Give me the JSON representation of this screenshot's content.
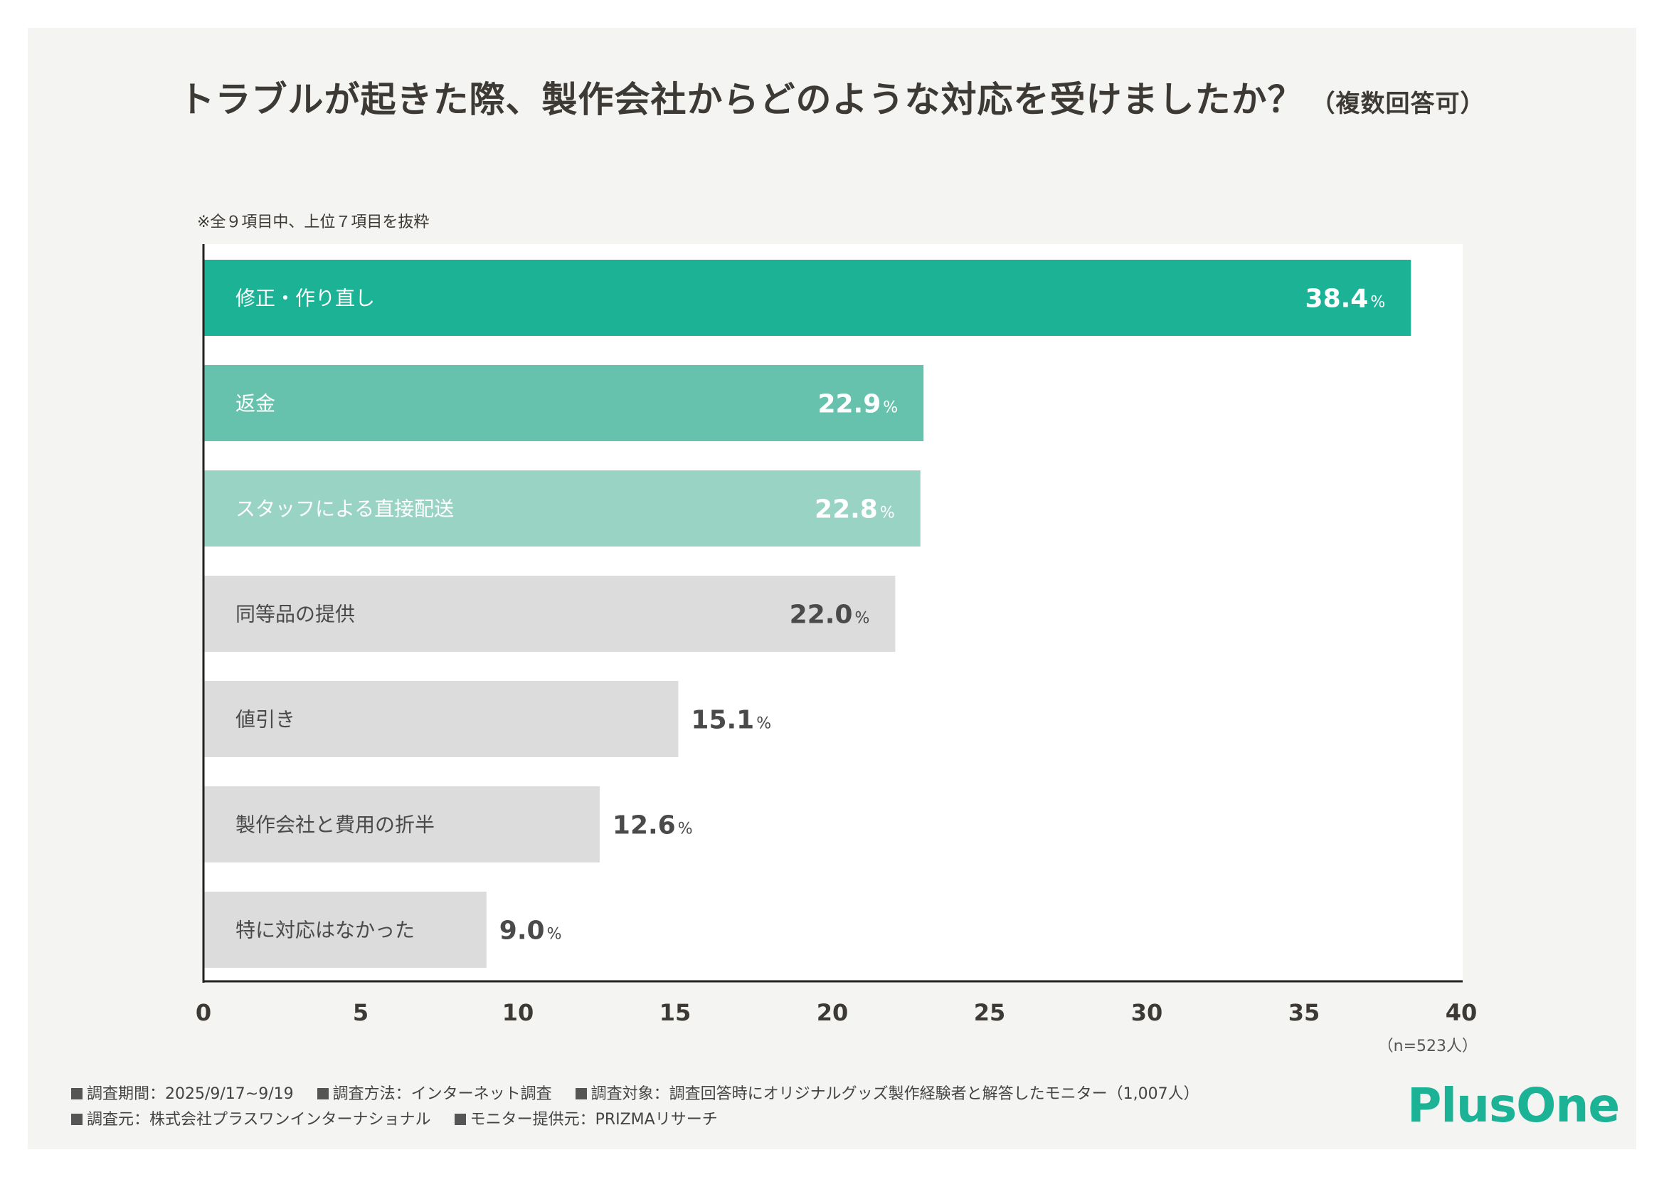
{
  "title": "トラブルが起きた際、製作会社からどのような対応を受けましたか？",
  "title_sub": "（複数回答可）",
  "note": "※全９項目中、上位７項目を抜粋",
  "sample_size": "（n=523人）",
  "footer": {
    "period": "調査期間：2025/9/17~9/19",
    "method": "調査方法：インターネット調査",
    "target": "調査対象：調査回答時にオリジナルグッズ製作経験者と解答したモニター（1,007人）",
    "source": "調査元：株式会社プラスワンインターナショナル",
    "provider": "モニター提供元：PRIZMAリサーチ"
  },
  "logo": "PlusOne",
  "colors": {
    "accent": "#1bb296",
    "bar_2": "#67c2ad",
    "bar_3": "#98d3c3",
    "bar_gray": "#dcdcdc",
    "text_dark": "#4a4a4a",
    "text_light": "#ffffff"
  },
  "chart_data": {
    "type": "bar",
    "orientation": "horizontal",
    "categories": [
      "修正・作り直し",
      "返金",
      "スタッフによる直接配送",
      "同等品の提供",
      "値引き",
      "製作会社と費用の折半",
      "特に対応はなかった"
    ],
    "values": [
      38.4,
      22.9,
      22.8,
      22.0,
      15.1,
      12.6,
      9.0
    ],
    "value_labels": [
      "38.4",
      "22.9",
      "22.8",
      "22.0",
      "15.1",
      "12.6",
      "9.0"
    ],
    "unit": "%",
    "xlim": [
      0,
      40
    ],
    "xticks": [
      "0",
      "5",
      "10",
      "15",
      "20",
      "25",
      "30",
      "35",
      "40"
    ],
    "grid": false
  }
}
